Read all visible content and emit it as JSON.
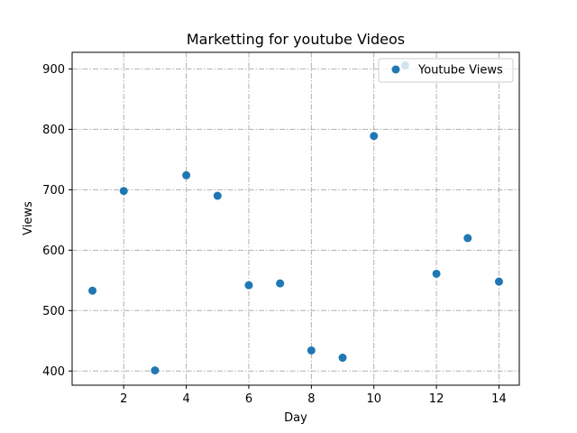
{
  "chart_data": {
    "type": "scatter",
    "title": "Marketting for youtube Videos",
    "xlabel": "Day",
    "ylabel": "Views",
    "xlim": [
      0.35,
      14.65
    ],
    "ylim": [
      376.5,
      927.5
    ],
    "xticks": [
      2,
      4,
      6,
      8,
      10,
      12,
      14
    ],
    "yticks": [
      400,
      500,
      600,
      700,
      800,
      900
    ],
    "grid": true,
    "legend_position": "top-right",
    "series": [
      {
        "name": "Youtube Views",
        "color": "#1f77b4",
        "x": [
          1,
          2,
          3,
          4,
          5,
          6,
          7,
          8,
          9,
          10,
          11,
          12,
          13,
          14
        ],
        "y": [
          533,
          698,
          401,
          724,
          690,
          542,
          545,
          434,
          422,
          789,
          906,
          561,
          620,
          548
        ]
      }
    ]
  }
}
